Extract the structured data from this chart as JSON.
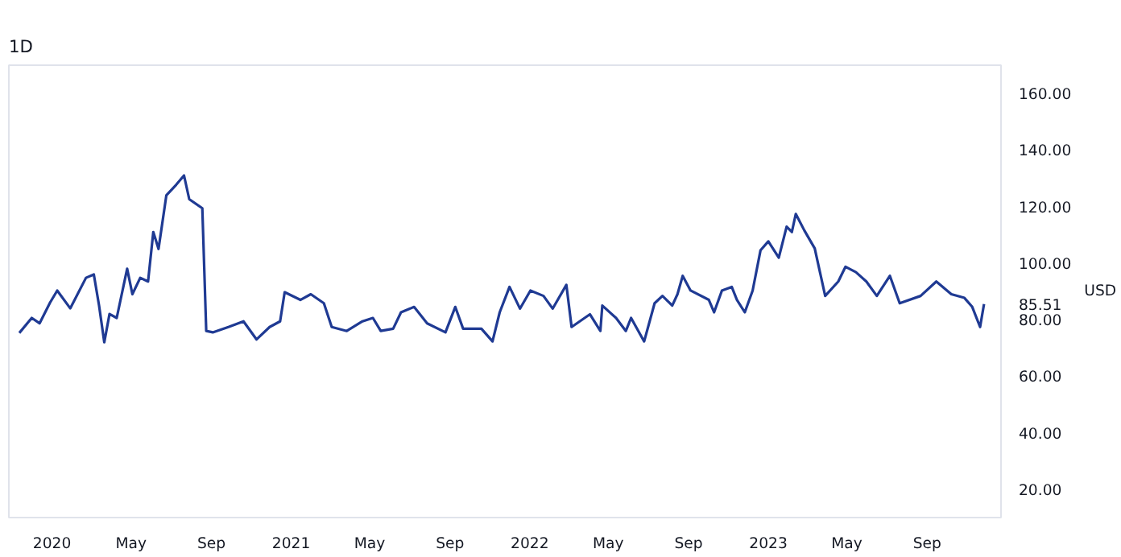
{
  "chart_data": {
    "type": "line",
    "title": "1D",
    "ylabel": "USD",
    "x": [
      "2019-11-12",
      "2019-12-01",
      "2019-12-13",
      "2019-12-29",
      "2020-01-09",
      "2020-01-29",
      "2020-02-22",
      "2020-03-05",
      "2020-03-13",
      "2020-03-21",
      "2020-03-29",
      "2020-04-09",
      "2020-04-25",
      "2020-05-03",
      "2020-05-15",
      "2020-05-27",
      "2020-06-04",
      "2020-06-12",
      "2020-06-24",
      "2020-07-09",
      "2020-07-21",
      "2020-07-29",
      "2020-08-18",
      "2020-08-24",
      "2020-09-03",
      "2020-09-27",
      "2020-10-20",
      "2020-11-09",
      "2020-11-29",
      "2020-12-15",
      "2020-12-22",
      "2021-01-15",
      "2021-01-31",
      "2021-02-20",
      "2021-03-04",
      "2021-03-27",
      "2021-04-20",
      "2021-05-06",
      "2021-05-18",
      "2021-06-06",
      "2021-06-18",
      "2021-07-08",
      "2021-07-28",
      "2021-08-25",
      "2021-09-09",
      "2021-09-21",
      "2021-10-19",
      "2021-11-05",
      "2021-11-16",
      "2021-12-01",
      "2021-12-17",
      "2022-01-02",
      "2022-01-22",
      "2022-02-05",
      "2022-02-26",
      "2022-03-06",
      "2022-04-03",
      "2022-04-19",
      "2022-04-22",
      "2022-05-13",
      "2022-05-28",
      "2022-06-05",
      "2022-06-25",
      "2022-07-11",
      "2022-07-23",
      "2022-08-07",
      "2022-08-15",
      "2022-08-23",
      "2022-09-04",
      "2022-10-02",
      "2022-10-10",
      "2022-10-22",
      "2022-11-06",
      "2022-11-14",
      "2022-11-26",
      "2022-12-08",
      "2022-12-20",
      "2023-01-01",
      "2023-01-17",
      "2023-01-29",
      "2023-02-06",
      "2023-02-12",
      "2023-02-25",
      "2023-03-13",
      "2023-03-29",
      "2023-04-18",
      "2023-04-29",
      "2023-05-15",
      "2023-05-31",
      "2023-06-16",
      "2023-07-06",
      "2023-07-21",
      "2023-08-22",
      "2023-09-15",
      "2023-10-08",
      "2023-10-28",
      "2023-11-09",
      "2023-11-21",
      "2023-11-27"
    ],
    "series": [
      {
        "color": "#1f3a93",
        "values": [
          75.3,
          80.6,
          78.7,
          86,
          90.3,
          84,
          94.8,
          96,
          85,
          72,
          82,
          80.6,
          98,
          89,
          94.8,
          93.5,
          111,
          105,
          124,
          127.7,
          131,
          122.6,
          119.4,
          76,
          75.5,
          77.4,
          79.4,
          73,
          77.4,
          79.4,
          89.7,
          87,
          89,
          85.8,
          77.4,
          76,
          79.4,
          80.6,
          76,
          76.8,
          82.6,
          84.5,
          78.7,
          75.5,
          84.5,
          76.8,
          76.8,
          72.3,
          82.6,
          91.6,
          83.9,
          90.3,
          88.4,
          83.9,
          92.3,
          77.4,
          81.9,
          76,
          85,
          80.6,
          76,
          80.6,
          72.3,
          85.8,
          88.4,
          85,
          89,
          95.5,
          90.3,
          87,
          82.6,
          90.3,
          91.6,
          87,
          82.6,
          90.3,
          104.5,
          107.7,
          101.9,
          112.9,
          111,
          117.4,
          111.6,
          105.2,
          88.4,
          93.5,
          98.7,
          96.8,
          93.5,
          88.4,
          95.5,
          85.8,
          88.4,
          93.5,
          89,
          87.7,
          84.5,
          77.4,
          85.51
        ]
      }
    ],
    "xlim": [
      "2019-10-27",
      "2023-12-23"
    ],
    "xticks": [
      {
        "value": "2020-01-01",
        "label": "2020"
      },
      {
        "value": "2020-05-01",
        "label": "May"
      },
      {
        "value": "2020-09-01",
        "label": "Sep"
      },
      {
        "value": "2021-01-01",
        "label": "2021"
      },
      {
        "value": "2021-05-01",
        "label": "May"
      },
      {
        "value": "2021-09-01",
        "label": "Sep"
      },
      {
        "value": "2022-01-01",
        "label": "2022"
      },
      {
        "value": "2022-05-01",
        "label": "May"
      },
      {
        "value": "2022-09-01",
        "label": "Sep"
      },
      {
        "value": "2023-01-01",
        "label": "2023"
      },
      {
        "value": "2023-05-01",
        "label": "May"
      },
      {
        "value": "2023-09-01",
        "label": "Sep"
      }
    ],
    "ylim": [
      10,
      170
    ],
    "yticks": [
      {
        "value": 20,
        "label": "20.00"
      },
      {
        "value": 40,
        "label": "40.00"
      },
      {
        "value": 60,
        "label": "60.00"
      },
      {
        "value": 80,
        "label": "80.00"
      },
      {
        "value": 85.51,
        "label": "85.51"
      },
      {
        "value": 100,
        "label": "100.00"
      },
      {
        "value": 120,
        "label": "120.00"
      },
      {
        "value": 140,
        "label": "140.00"
      },
      {
        "value": 160,
        "label": "160.00"
      }
    ]
  }
}
